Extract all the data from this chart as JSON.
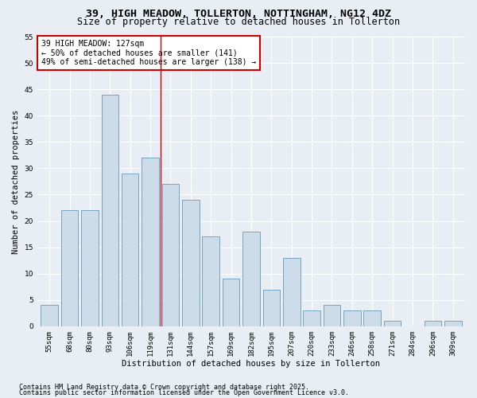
{
  "title1": "39, HIGH MEADOW, TOLLERTON, NOTTINGHAM, NG12 4DZ",
  "title2": "Size of property relative to detached houses in Tollerton",
  "xlabel": "Distribution of detached houses by size in Tollerton",
  "ylabel": "Number of detached properties",
  "categories": [
    "55sqm",
    "68sqm",
    "80sqm",
    "93sqm",
    "106sqm",
    "119sqm",
    "131sqm",
    "144sqm",
    "157sqm",
    "169sqm",
    "182sqm",
    "195sqm",
    "207sqm",
    "220sqm",
    "233sqm",
    "246sqm",
    "258sqm",
    "271sqm",
    "284sqm",
    "296sqm",
    "309sqm"
  ],
  "values": [
    4,
    22,
    22,
    44,
    29,
    32,
    27,
    24,
    17,
    9,
    18,
    7,
    13,
    3,
    4,
    3,
    3,
    1,
    0,
    1,
    1
  ],
  "bar_color": "#ccdce8",
  "bar_edge_color": "#6699bb",
  "ref_line_x": 5.5,
  "ref_line_color": "#cc0000",
  "annotation_text": "39 HIGH MEADOW: 127sqm\n← 50% of detached houses are smaller (141)\n49% of semi-detached houses are larger (138) →",
  "annotation_box_color": "#ffffff",
  "annotation_box_edge": "#cc0000",
  "ylim": [
    0,
    55
  ],
  "yticks": [
    0,
    5,
    10,
    15,
    20,
    25,
    30,
    35,
    40,
    45,
    50,
    55
  ],
  "footer1": "Contains HM Land Registry data © Crown copyright and database right 2025.",
  "footer2": "Contains public sector information licensed under the Open Government Licence v3.0.",
  "bg_color": "#e8eef4",
  "plot_bg_color": "#e8eef4",
  "grid_color": "#ffffff",
  "title_fontsize": 9.5,
  "subtitle_fontsize": 8.5,
  "axis_label_fontsize": 7.5,
  "tick_fontsize": 6.5,
  "annotation_fontsize": 7,
  "footer_fontsize": 6
}
